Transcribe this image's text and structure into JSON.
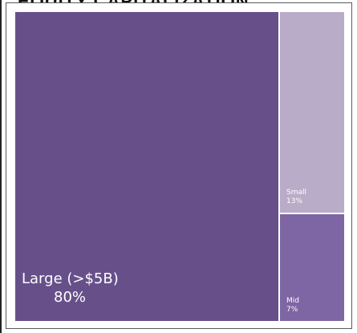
{
  "title": "EQUITY CAPITALIZATION",
  "chart_data": {
    "type": "treemap",
    "title": "EQUITY CAPITALIZATION",
    "items": [
      {
        "name": "Large (>$5B)",
        "value": 80,
        "label": "80%",
        "color": "#67508a"
      },
      {
        "name": "Small",
        "value": 13,
        "label": "13%",
        "color": "#b8acc8"
      },
      {
        "name": "Mid",
        "value": 7,
        "label": "7%",
        "color": "#7e65a4"
      }
    ]
  }
}
